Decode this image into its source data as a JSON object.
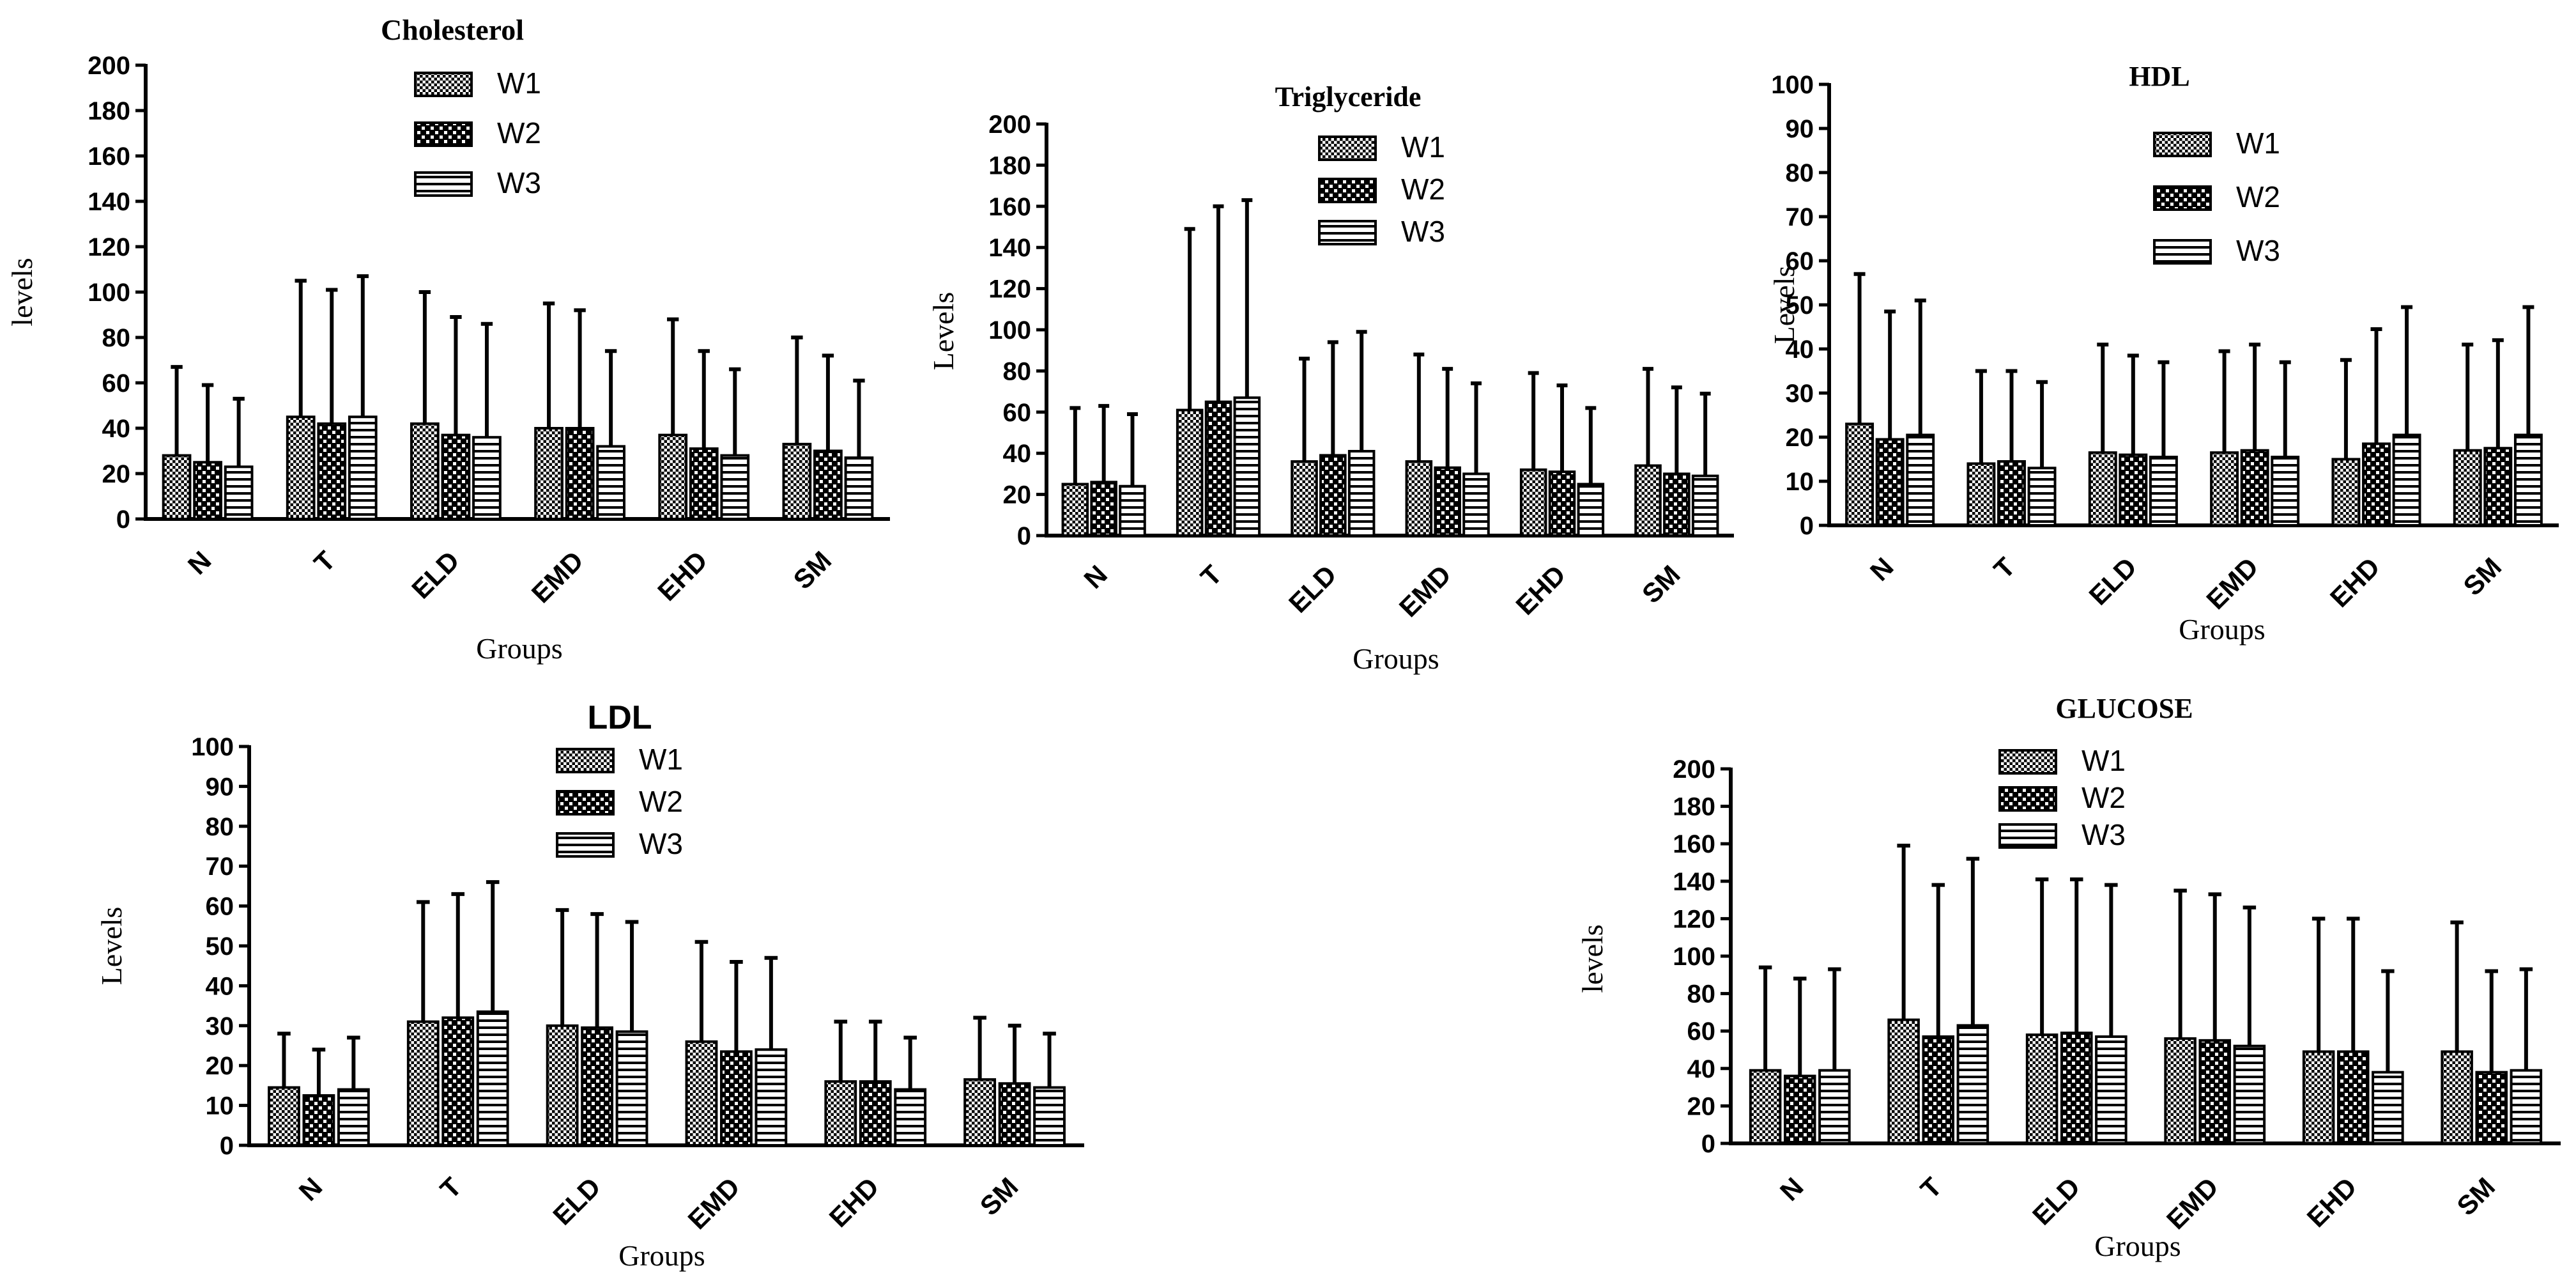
{
  "figure": {
    "legend_series": [
      "W1",
      "W2",
      "W3"
    ]
  },
  "chart_data": [
    {
      "type": "bar",
      "title": "Cholesterol",
      "xlabel": "Groups",
      "ylabel": "levels",
      "categories": [
        "N",
        "T",
        "ELD",
        "EMD",
        "EHD",
        "SM"
      ],
      "ylim": [
        0,
        200
      ],
      "yticks": [
        0,
        20,
        40,
        60,
        80,
        100,
        120,
        140,
        160,
        180,
        200
      ],
      "error_bars": "one-sided upper",
      "legend_placement": "top-center",
      "series": [
        {
          "name": "W1",
          "values": [
            28,
            45,
            42,
            40,
            37,
            33
          ],
          "error_top": [
            67,
            105,
            100,
            95,
            88,
            80
          ]
        },
        {
          "name": "W2",
          "values": [
            25,
            42,
            37,
            40,
            31,
            30
          ],
          "error_top": [
            59,
            101,
            89,
            92,
            74,
            72
          ]
        },
        {
          "name": "W3",
          "values": [
            23,
            45,
            36,
            32,
            28,
            27
          ],
          "error_top": [
            53,
            107,
            86,
            74,
            66,
            61
          ]
        }
      ]
    },
    {
      "type": "bar",
      "title": "Triglyceride",
      "xlabel": "Groups",
      "ylabel": "Levels",
      "categories": [
        "N",
        "T",
        "ELD",
        "EMD",
        "EHD",
        "SM"
      ],
      "ylim": [
        0,
        200
      ],
      "yticks": [
        0,
        20,
        40,
        60,
        80,
        100,
        120,
        140,
        160,
        180,
        200
      ],
      "error_bars": "one-sided upper",
      "legend_placement": "top-right",
      "series": [
        {
          "name": "W1",
          "values": [
            25,
            61,
            36,
            36,
            32,
            34
          ],
          "error_top": [
            62,
            149,
            86,
            88,
            79,
            81
          ]
        },
        {
          "name": "W2",
          "values": [
            26,
            65,
            39,
            33,
            31,
            30
          ],
          "error_top": [
            63,
            160,
            94,
            81,
            73,
            72
          ]
        },
        {
          "name": "W3",
          "values": [
            24,
            67,
            41,
            30,
            25,
            29
          ],
          "error_top": [
            59,
            163,
            99,
            74,
            62,
            69
          ]
        }
      ]
    },
    {
      "type": "bar",
      "title": "HDL",
      "xlabel": "Groups",
      "ylabel": "Levels",
      "categories": [
        "N",
        "T",
        "ELD",
        "EMD",
        "EHD",
        "SM"
      ],
      "ylim": [
        0,
        100
      ],
      "yticks": [
        0,
        10,
        20,
        30,
        40,
        50,
        60,
        70,
        80,
        90,
        100
      ],
      "error_bars": "one-sided upper",
      "legend_placement": "top-center",
      "series": [
        {
          "name": "W1",
          "values": [
            23,
            14,
            16.5,
            16.5,
            15,
            17
          ],
          "error_top": [
            57,
            35,
            41,
            39.5,
            37.5,
            41
          ]
        },
        {
          "name": "W2",
          "values": [
            19.5,
            14.5,
            16,
            17,
            18.5,
            17.5
          ],
          "error_top": [
            48.5,
            35,
            38.5,
            41,
            44.5,
            42
          ]
        },
        {
          "name": "W3",
          "values": [
            20.5,
            13,
            15.5,
            15.5,
            20.5,
            20.5
          ],
          "error_top": [
            51,
            32.5,
            37,
            37,
            49.5,
            49.5
          ]
        }
      ]
    },
    {
      "type": "bar",
      "title": "LDL",
      "xlabel": "Groups",
      "ylabel": "Levels",
      "categories": [
        "N",
        "T",
        "ELD",
        "EMD",
        "EHD",
        "SM"
      ],
      "ylim": [
        0,
        100
      ],
      "yticks": [
        0,
        10,
        20,
        30,
        40,
        50,
        60,
        70,
        80,
        90,
        100
      ],
      "error_bars": "one-sided upper",
      "legend_placement": "top-center",
      "series": [
        {
          "name": "W1",
          "values": [
            14.5,
            31,
            30,
            26,
            16,
            16.5
          ],
          "error_top": [
            28,
            61,
            59,
            51,
            31,
            32
          ]
        },
        {
          "name": "W2",
          "values": [
            12.5,
            32,
            29.5,
            23.5,
            16,
            15.5
          ],
          "error_top": [
            24,
            63,
            58,
            46,
            31,
            30
          ]
        },
        {
          "name": "W3",
          "values": [
            14,
            33.5,
            28.5,
            24,
            14,
            14.5
          ],
          "error_top": [
            27,
            66,
            56,
            47,
            27,
            28
          ]
        }
      ]
    },
    {
      "type": "bar",
      "title": "GLUCOSE",
      "xlabel": "Groups",
      "ylabel": "levels",
      "categories": [
        "N",
        "T",
        "ELD",
        "EMD",
        "EHD",
        "SM"
      ],
      "ylim": [
        0,
        200
      ],
      "yticks": [
        0,
        20,
        40,
        60,
        80,
        100,
        120,
        140,
        160,
        180,
        200
      ],
      "error_bars": "one-sided upper",
      "legend_placement": "top-center",
      "series": [
        {
          "name": "W1",
          "values": [
            39,
            66,
            58,
            56,
            49,
            49
          ],
          "error_top": [
            94,
            159,
            141,
            135,
            120,
            118
          ]
        },
        {
          "name": "W2",
          "values": [
            36,
            57,
            59,
            55,
            49,
            38
          ],
          "error_top": [
            88,
            138,
            141,
            133,
            120,
            92
          ]
        },
        {
          "name": "W3",
          "values": [
            39,
            63,
            57,
            52,
            38,
            39
          ],
          "error_top": [
            93,
            152,
            138,
            126,
            92,
            93
          ]
        }
      ]
    }
  ]
}
